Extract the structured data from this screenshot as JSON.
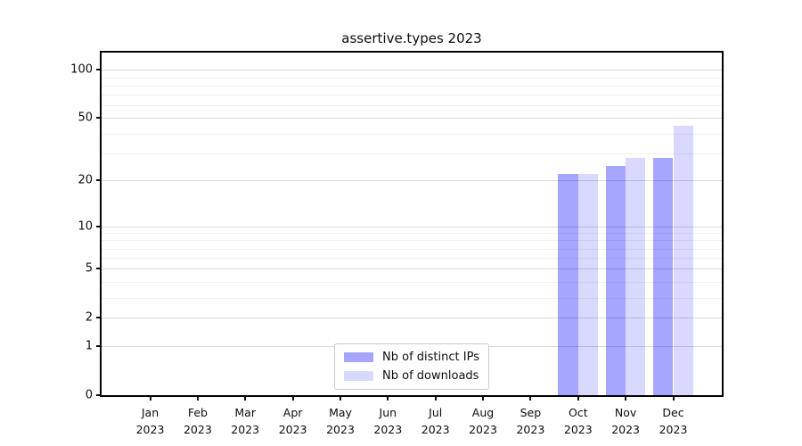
{
  "figure": {
    "title": "assertive.types 2023"
  },
  "chart_data": {
    "type": "bar",
    "title": "assertive.types 2023",
    "categories": [
      "Jan 2023",
      "Feb 2023",
      "Mar 2023",
      "Apr 2023",
      "May 2023",
      "Jun 2023",
      "Jul 2023",
      "Aug 2023",
      "Sep 2023",
      "Oct 2023",
      "Nov 2023",
      "Dec 2023"
    ],
    "x_tick_months": [
      "Jan",
      "Feb",
      "Mar",
      "Apr",
      "May",
      "Jun",
      "Jul",
      "Aug",
      "Sep",
      "Oct",
      "Nov",
      "Dec"
    ],
    "x_tick_year": "2023",
    "series": [
      {
        "name": "Nb of distinct IPs",
        "color": "rgba(0,0,255,0.35)",
        "color_hex": "#a6a6ff",
        "values": [
          0,
          0,
          0,
          0,
          0,
          0,
          0,
          0,
          0,
          22,
          25,
          28
        ]
      },
      {
        "name": "Nb of downloads",
        "color": "rgba(0,0,255,0.15)",
        "color_hex": "#d9d9ff",
        "values": [
          0,
          0,
          0,
          0,
          0,
          0,
          0,
          0,
          0,
          22,
          28,
          45
        ]
      }
    ],
    "yscale": "log1p",
    "ylim": [
      0,
      128
    ],
    "yticks": [
      0,
      1,
      2,
      5,
      10,
      20,
      50,
      100
    ],
    "yticks_minor": [
      3,
      4,
      6,
      7,
      8,
      9,
      30,
      40,
      60,
      70,
      80,
      90
    ],
    "grid": true,
    "legend_position": "lower center"
  },
  "legend": {
    "items": [
      {
        "label": "Nb of distinct IPs",
        "color": "rgba(0,0,255,0.35)"
      },
      {
        "label": "Nb of downloads",
        "color": "rgba(0,0,255,0.15)"
      }
    ]
  },
  "colors": {
    "background": "#ffffff",
    "spine": "#000000",
    "grid_major": "#d9d9d9",
    "grid_minor": "#f0f0f0",
    "tick": "#111111",
    "text": "#0d0d0d",
    "legend_border": "#cccccc"
  }
}
